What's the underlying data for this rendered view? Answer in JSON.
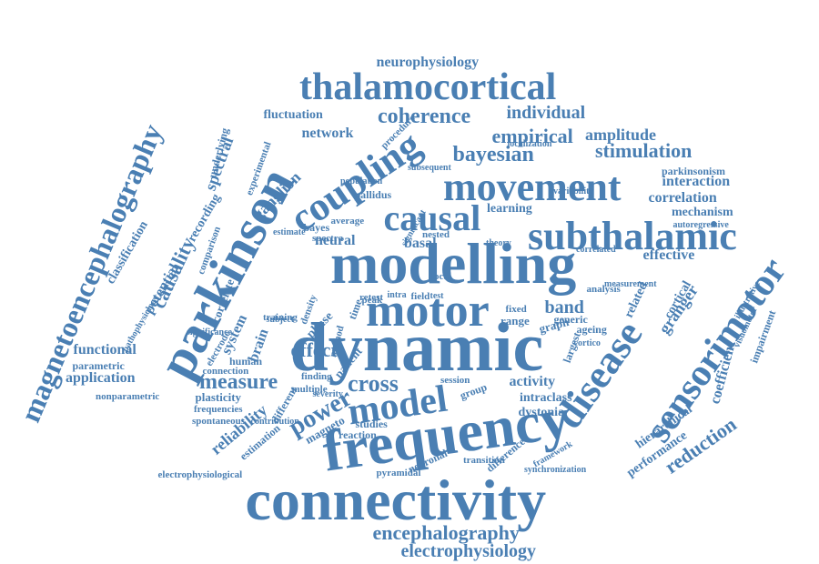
{
  "colors": {
    "word": "#4a7fb3",
    "background": "#ffffff"
  },
  "words": [
    "connectivity",
    "frequency",
    "dynamic",
    "modelling",
    "parkinson",
    "motor",
    "disease",
    "subthalamic",
    "movement",
    "coupling",
    "causal",
    "model",
    "sensorimotor",
    "thalamocortical",
    "magnetoencephalography",
    "power",
    "cross",
    "measure",
    "effect",
    "band",
    "coherence",
    "empirical",
    "bayesian",
    "stimulation",
    "individual",
    "amplitude",
    "neurophysiology",
    "encephalography",
    "electrophysiology",
    "reduction",
    "granger",
    "causality",
    "functional",
    "application",
    "reliability",
    "brain",
    "neural",
    "basal",
    "spectral",
    "interaction",
    "correlation",
    "network",
    "fluctuation",
    "ganglion",
    "mechanism",
    "learning",
    "activity",
    "intraclass",
    "dystonia",
    "cortical",
    "coefficient",
    "hierarchical",
    "performance",
    "impairment",
    "related",
    "effective",
    "parkinsonism",
    "classification",
    "potential",
    "recording",
    "parametric",
    "nonparametric",
    "plasticity",
    "frequencies",
    "spontaneous",
    "electrophysiological",
    "system",
    "correlate",
    "human",
    "pallidus",
    "bayes",
    "spectra",
    "average",
    "local",
    "phase",
    "patient",
    "magneto",
    "reaction",
    "studies",
    "session",
    "group",
    "range",
    "graph",
    "generic",
    "ageing",
    "largest",
    "analysis",
    "transition",
    "neuronal",
    "pyramidal",
    "difference",
    "synchronization",
    "framework",
    "underlying",
    "comparison",
    "electrode",
    "estimation",
    "different",
    "fixed",
    "nested",
    "retest",
    "time",
    "density",
    "training",
    "connection",
    "finding",
    "multiple",
    "method",
    "peak",
    "field",
    "test",
    "intra",
    "autoregressive",
    "theory",
    "variability",
    "localization",
    "subsequent",
    "procedure",
    "experimental",
    "significance",
    "pathophysiology",
    "illustrative",
    "visuomotor",
    "measurement",
    "correlated",
    "cortico",
    "population",
    "significant",
    "estimate",
    "subject",
    "severity",
    "contribution"
  ]
}
